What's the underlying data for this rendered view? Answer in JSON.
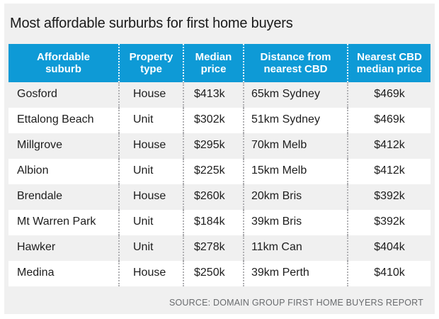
{
  "title": "Most affordable surburbs for first home buyers",
  "source": "SOURCE: DOMAIN GROUP FIRST HOME BUYERS REPORT",
  "colors": {
    "header_bg": "#0e9ad6",
    "header_text": "#ffffff",
    "row_gray": "#f0f0f0",
    "row_white": "#ffffff",
    "panel_bg": "#f0f0f0",
    "frame": "#ffffff",
    "body_text": "#1d1d1d",
    "separator_dots": "#b0b0b3",
    "source_text": "#696b6e"
  },
  "chart_data": {
    "type": "table",
    "title": "Most affordable surburbs for first home buyers",
    "columns": [
      {
        "label": "Affordable\nsuburb"
      },
      {
        "label": "Property\ntype"
      },
      {
        "label": "Median\nprice"
      },
      {
        "label": "Distance from\nnearest CBD"
      },
      {
        "label": "Nearest CBD\nmedian price"
      }
    ],
    "rows": [
      [
        "Gosford",
        "House",
        "$413k",
        "65km Sydney",
        "$469k"
      ],
      [
        "Ettalong Beach",
        "Unit",
        "$302k",
        "51km Sydney",
        "$469k"
      ],
      [
        "Millgrove",
        "House",
        "$295k",
        "70km Melb",
        "$412k"
      ],
      [
        "Albion",
        "Unit",
        "$225k",
        "15km Melb",
        "$412k"
      ],
      [
        "Brendale",
        "House",
        "$260k",
        "20km Bris",
        "$392k"
      ],
      [
        "Mt Warren Park",
        "Unit",
        "$184k",
        "39km Bris",
        "$392k"
      ],
      [
        "Hawker",
        "Unit",
        "$278k",
        "11km Can",
        "$404k"
      ],
      [
        "Medina",
        "House",
        "$250k",
        "39km Perth",
        "$410k"
      ]
    ]
  }
}
